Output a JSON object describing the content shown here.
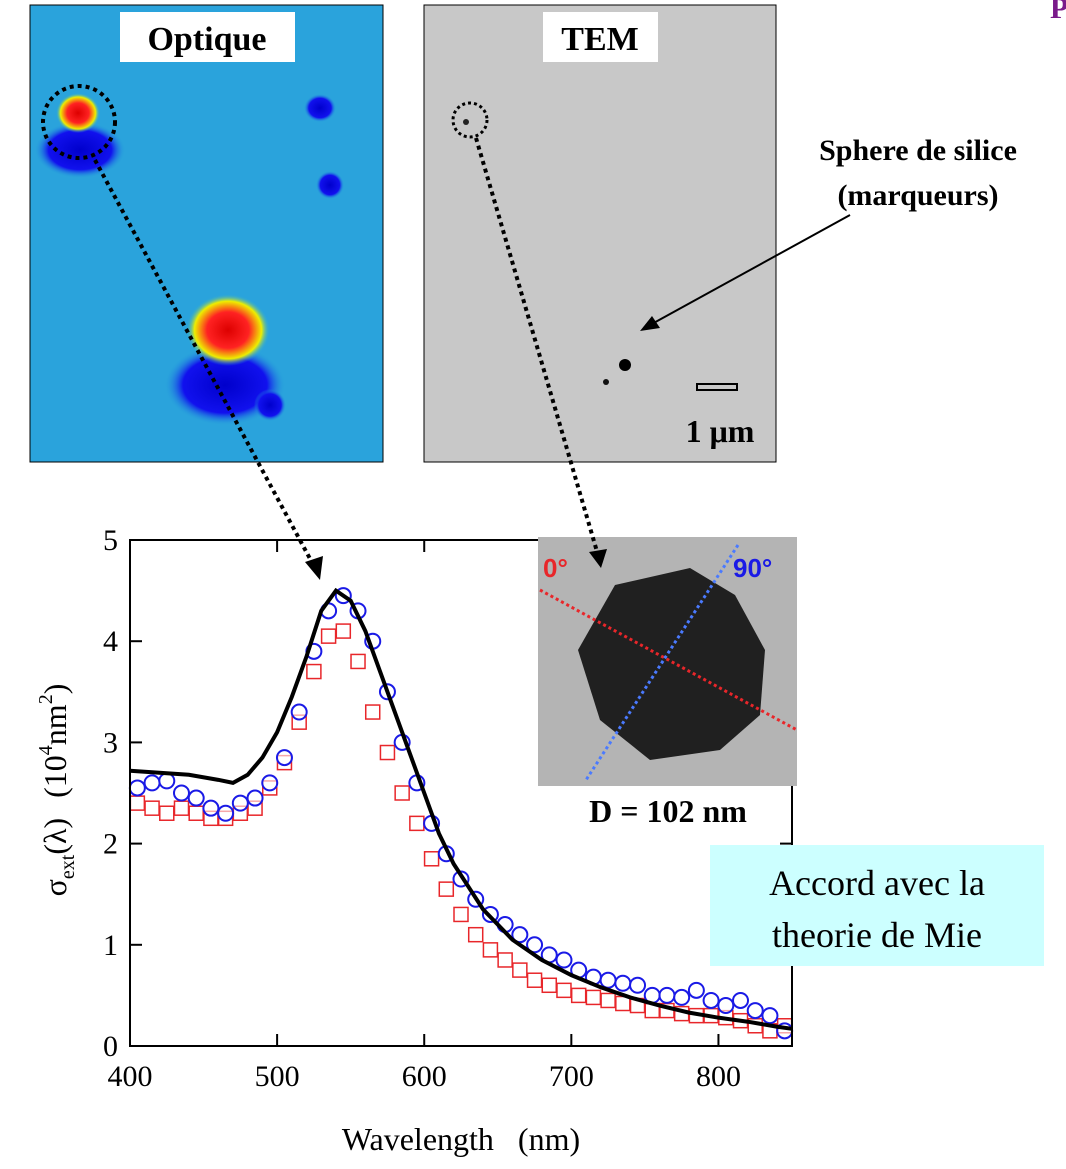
{
  "chart_data": {
    "type": "scatter",
    "x_label": "Wavelength   (nm)",
    "y_label": {
      "symbol": "σ",
      "subscript": "ext",
      "arg": "(λ)",
      "unit_open": "(10",
      "exponent": "4",
      "unit": "nm",
      "unit_exp": "2",
      "unit_close": ")"
    },
    "xlim": [
      400,
      850
    ],
    "ylim": [
      0,
      5
    ],
    "xticks": [
      400,
      500,
      600,
      700,
      800
    ],
    "yticks": [
      0,
      1,
      2,
      3,
      4,
      5
    ],
    "series": [
      {
        "marker": "square",
        "color": "#e8262a",
        "x": [
          405,
          415,
          425,
          435,
          445,
          455,
          465,
          475,
          485,
          495,
          505,
          515,
          525,
          535,
          545,
          555,
          565,
          575,
          585,
          595,
          605,
          615,
          625,
          635,
          645,
          655,
          665,
          675,
          685,
          695,
          705,
          715,
          725,
          735,
          745,
          755,
          765,
          775,
          785,
          795,
          805,
          815,
          825,
          835,
          845
        ],
        "values": [
          2.4,
          2.35,
          2.3,
          2.35,
          2.3,
          2.25,
          2.25,
          2.3,
          2.35,
          2.55,
          2.8,
          3.2,
          3.7,
          4.05,
          4.1,
          3.8,
          3.3,
          2.9,
          2.5,
          2.2,
          1.85,
          1.55,
          1.3,
          1.1,
          0.95,
          0.85,
          0.75,
          0.65,
          0.6,
          0.55,
          0.5,
          0.48,
          0.45,
          0.42,
          0.4,
          0.35,
          0.35,
          0.32,
          0.3,
          0.3,
          0.28,
          0.25,
          0.2,
          0.15,
          0.2
        ]
      },
      {
        "marker": "circle",
        "color": "#1a1ae6",
        "x": [
          405,
          415,
          425,
          435,
          445,
          455,
          465,
          475,
          485,
          495,
          505,
          515,
          525,
          535,
          545,
          555,
          565,
          575,
          585,
          595,
          605,
          615,
          625,
          635,
          645,
          655,
          665,
          675,
          685,
          695,
          705,
          715,
          725,
          735,
          745,
          755,
          765,
          775,
          785,
          795,
          805,
          815,
          825,
          835,
          845
        ],
        "values": [
          2.55,
          2.6,
          2.62,
          2.5,
          2.45,
          2.35,
          2.3,
          2.4,
          2.45,
          2.6,
          2.85,
          3.3,
          3.9,
          4.3,
          4.45,
          4.3,
          4.0,
          3.5,
          3.0,
          2.6,
          2.2,
          1.9,
          1.65,
          1.45,
          1.3,
          1.2,
          1.1,
          1.0,
          0.9,
          0.85,
          0.75,
          0.68,
          0.65,
          0.62,
          0.6,
          0.5,
          0.5,
          0.48,
          0.55,
          0.45,
          0.4,
          0.45,
          0.35,
          0.3,
          0.15
        ]
      },
      {
        "marker": "line",
        "color": "#000000",
        "x": [
          400,
          420,
          440,
          460,
          470,
          480,
          490,
          500,
          510,
          520,
          530,
          540,
          550,
          560,
          570,
          580,
          590,
          600,
          610,
          620,
          640,
          660,
          680,
          700,
          720,
          740,
          760,
          780,
          800,
          820,
          840,
          850
        ],
        "values": [
          2.72,
          2.7,
          2.68,
          2.63,
          2.6,
          2.68,
          2.85,
          3.1,
          3.45,
          3.85,
          4.3,
          4.5,
          4.4,
          4.1,
          3.7,
          3.3,
          2.9,
          2.5,
          2.1,
          1.8,
          1.35,
          1.05,
          0.85,
          0.7,
          0.58,
          0.48,
          0.4,
          0.33,
          0.28,
          0.24,
          0.19,
          0.17
        ]
      }
    ],
    "annotations": {
      "optique": "Optique",
      "tem": "TEM",
      "sphere": "Sphere de silice",
      "marqueurs": "(marqueurs)",
      "scale": "1 μm",
      "angle0": "0°",
      "angle90": "90°",
      "diameter": "D = 102 nm",
      "accord1": "Accord avec la",
      "accord2": "theorie de Mie",
      "corner": "P"
    }
  }
}
